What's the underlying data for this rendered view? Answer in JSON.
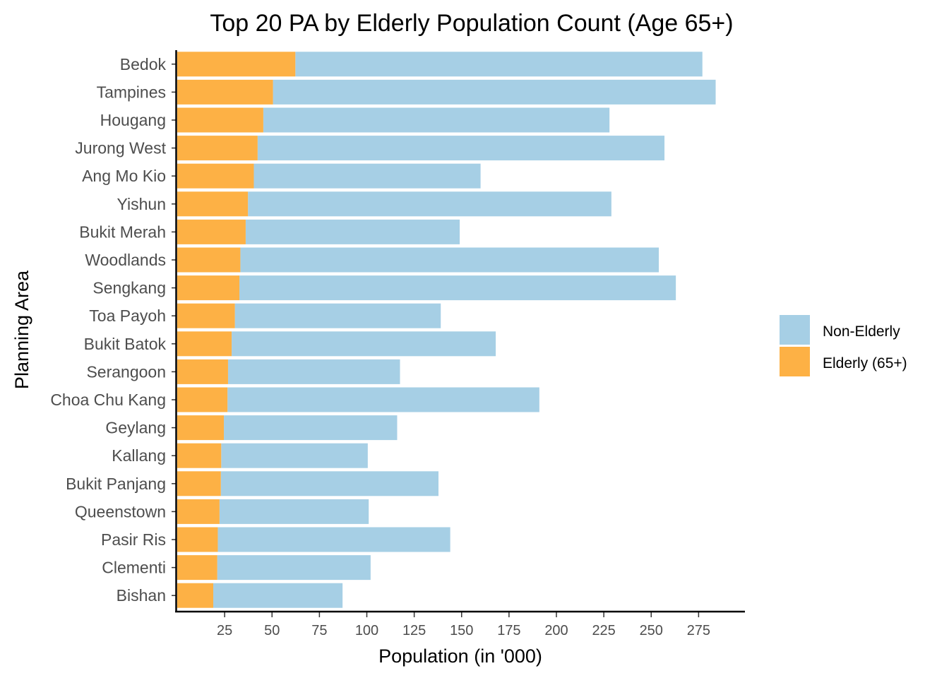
{
  "chart_data": {
    "type": "bar",
    "orientation": "horizontal",
    "stacked": true,
    "title": "Top 20 PA by Elderly Population Count (Age 65+)",
    "xlabel": "Population (in '000)",
    "ylabel": "Planning Area",
    "xlim": [
      0,
      298
    ],
    "xticks": [
      25,
      50,
      75,
      100,
      125,
      150,
      175,
      200,
      225,
      250,
      275
    ],
    "legend_position": "right",
    "grid": false,
    "categories": [
      "Bedok",
      "Tampines",
      "Hougang",
      "Jurong West",
      "Ang Mo Kio",
      "Yishun",
      "Bukit Merah",
      "Woodlands",
      "Sengkang",
      "Toa Payoh",
      "Bukit Batok",
      "Serangoon",
      "Choa Chu Kang",
      "Geylang",
      "Kallang",
      "Bukit Panjang",
      "Queenstown",
      "Pasir Ris",
      "Clementi",
      "Bishan"
    ],
    "series": [
      {
        "name": "Elderly (65+)",
        "color": "#FDB145",
        "values": [
          62.3,
          50.5,
          45.4,
          42.4,
          40.4,
          37.3,
          36.1,
          33.3,
          32.8,
          30.4,
          28.7,
          26.8,
          26.5,
          24.6,
          23.2,
          23.0,
          22.3,
          21.4,
          21.1,
          19.0
        ]
      },
      {
        "name": "Non-Elderly",
        "color": "#A6CFE5",
        "values": [
          214.7,
          233.5,
          182.6,
          214.6,
          119.6,
          191.7,
          112.9,
          220.7,
          230.2,
          108.6,
          139.3,
          90.7,
          164.5,
          91.4,
          77.3,
          114.8,
          78.7,
          122.6,
          80.9,
          68.2
        ]
      }
    ],
    "legend": [
      {
        "label": "Non-Elderly",
        "color": "#A6CFE5"
      },
      {
        "label": "Elderly (65+)",
        "color": "#FDB145"
      }
    ]
  }
}
